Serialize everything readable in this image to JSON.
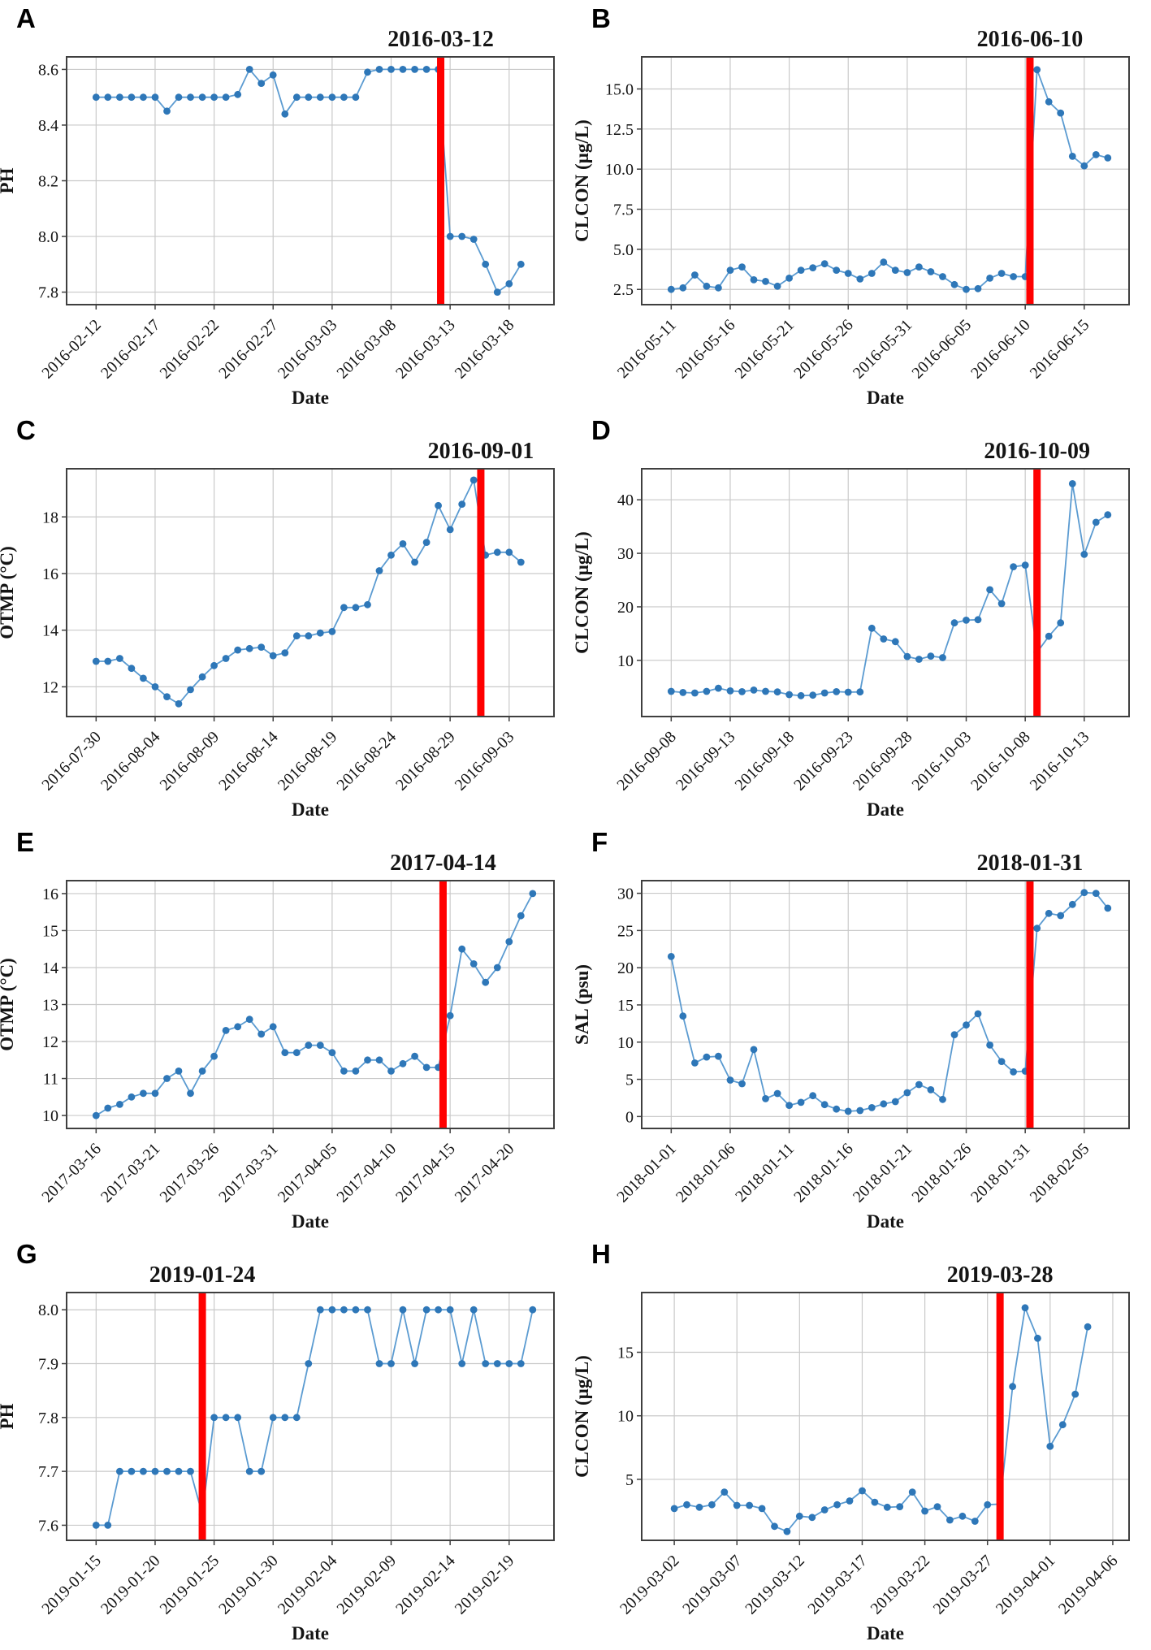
{
  "colors": {
    "line": "#5b9bd1",
    "marker": "#2e77b8",
    "event_line": "#ff0000",
    "annotation_text": "#f50400",
    "grid": "#c9c9c9",
    "frame": "#3f3f3f",
    "plot_background": "#ffffff"
  },
  "chart_data": [
    {
      "type": "line",
      "panel_label": "A",
      "ylabel": "PH",
      "xlabel": "Date",
      "annotation": "2016-03-12",
      "event_x": 29.2,
      "x_unit": "days from first tick date",
      "x_tick_positions": [
        0,
        5,
        10,
        15,
        20,
        25,
        30,
        35
      ],
      "x_tick_labels": [
        "2016-02-12",
        "2016-02-17",
        "2016-02-22",
        "2016-02-27",
        "2016-03-03",
        "2016-03-08",
        "2016-03-13",
        "2016-03-18"
      ],
      "y_tick_values": [
        7.8,
        8.0,
        8.2,
        8.4,
        8.6
      ],
      "y_tick_labels": [
        "7.8",
        "8.0",
        "8.2",
        "8.4",
        "8.6"
      ],
      "ylim": [
        7.755,
        8.645
      ],
      "xlim": [
        -2.5,
        38.8
      ],
      "values": [
        8.5,
        8.5,
        8.5,
        8.5,
        8.5,
        8.5,
        8.45,
        8.5,
        8.5,
        8.5,
        8.5,
        8.5,
        8.51,
        8.6,
        8.55,
        8.58,
        8.44,
        8.5,
        8.5,
        8.5,
        8.5,
        8.5,
        8.5,
        8.59,
        8.6,
        8.6,
        8.6,
        8.6,
        8.6,
        8.6,
        8.0,
        8.0,
        7.99,
        7.9,
        7.8,
        7.83,
        7.9
      ]
    },
    {
      "type": "line",
      "panel_label": "B",
      "ylabel": "CLCON (µg/L)",
      "xlabel": "Date",
      "annotation": "2016-06-10",
      "event_x": 30.4,
      "x_unit": "days from first tick date",
      "x_tick_positions": [
        0,
        5,
        10,
        15,
        20,
        25,
        30,
        35
      ],
      "x_tick_labels": [
        "2016-05-11",
        "2016-05-16",
        "2016-05-21",
        "2016-05-26",
        "2016-05-31",
        "2016-06-05",
        "2016-06-10",
        "2016-06-15"
      ],
      "y_tick_values": [
        2.5,
        5.0,
        7.5,
        10.0,
        12.5,
        15.0
      ],
      "y_tick_labels": [
        "2.5",
        "5.0",
        "7.5",
        "10.0",
        "12.5",
        "15.0"
      ],
      "ylim": [
        1.55,
        17.0
      ],
      "xlim": [
        -2.5,
        38.8
      ],
      "values": [
        2.5,
        2.6,
        3.4,
        2.7,
        2.6,
        3.7,
        3.9,
        3.1,
        3.0,
        2.7,
        3.2,
        3.7,
        3.85,
        4.1,
        3.7,
        3.5,
        3.15,
        3.5,
        4.2,
        3.7,
        3.55,
        3.9,
        3.6,
        3.3,
        2.8,
        2.5,
        2.55,
        3.2,
        3.5,
        3.3,
        3.3,
        16.2,
        14.2,
        13.5,
        10.8,
        10.2,
        10.9,
        10.7
      ]
    },
    {
      "type": "line",
      "panel_label": "C",
      "ylabel": "OTMP (°C)",
      "xlabel": "Date",
      "annotation": "2016-09-01",
      "event_x": 32.6,
      "x_unit": "days from first tick date",
      "x_tick_positions": [
        0,
        5,
        10,
        15,
        20,
        25,
        30,
        35
      ],
      "x_tick_labels": [
        "2016-07-30",
        "2016-08-04",
        "2016-08-09",
        "2016-08-14",
        "2016-08-19",
        "2016-08-24",
        "2016-08-29",
        "2016-09-03"
      ],
      "y_tick_values": [
        12,
        14,
        16,
        18
      ],
      "y_tick_labels": [
        "12",
        "14",
        "16",
        "18"
      ],
      "ylim": [
        10.95,
        19.7
      ],
      "xlim": [
        -2.5,
        38.8
      ],
      "values": [
        12.9,
        12.9,
        13.0,
        12.65,
        12.3,
        12.0,
        11.65,
        11.4,
        11.9,
        12.35,
        12.75,
        13.0,
        13.3,
        13.35,
        13.4,
        13.1,
        13.2,
        13.8,
        13.8,
        13.9,
        13.95,
        14.8,
        14.8,
        14.9,
        16.1,
        16.65,
        17.05,
        16.4,
        17.1,
        18.4,
        17.55,
        18.45,
        19.3,
        16.65,
        16.75,
        16.75,
        16.4
      ]
    },
    {
      "type": "line",
      "panel_label": "D",
      "ylabel": "CLCON (µg/L)",
      "xlabel": "Date",
      "annotation": "2016-10-09",
      "event_x": 31.0,
      "x_unit": "days from first tick date",
      "x_tick_positions": [
        0,
        5,
        10,
        15,
        20,
        25,
        30,
        35
      ],
      "x_tick_labels": [
        "2016-09-08",
        "2016-09-13",
        "2016-09-18",
        "2016-09-23",
        "2016-09-28",
        "2016-10-03",
        "2016-10-08",
        "2016-10-13"
      ],
      "y_tick_values": [
        10,
        20,
        30,
        40
      ],
      "y_tick_labels": [
        "10",
        "20",
        "30",
        "40"
      ],
      "ylim": [
        -0.5,
        45.8
      ],
      "xlim": [
        -2.5,
        38.8
      ],
      "values": [
        4.2,
        4.0,
        3.9,
        4.2,
        4.8,
        4.3,
        4.15,
        4.45,
        4.2,
        4.1,
        3.6,
        3.4,
        3.5,
        3.9,
        4.15,
        4.05,
        4.1,
        16.0,
        14.0,
        13.5,
        10.7,
        10.2,
        10.8,
        10.5,
        17.0,
        17.5,
        17.6,
        23.2,
        20.6,
        27.5,
        27.8,
        11.5,
        14.5,
        17.0,
        43.0,
        29.8,
        35.8,
        37.2
      ]
    },
    {
      "type": "line",
      "panel_label": "E",
      "ylabel": "OTMP (°C)",
      "xlabel": "Date",
      "annotation": "2017-04-14",
      "event_x": 29.4,
      "x_unit": "days from first tick date",
      "x_tick_positions": [
        0,
        5,
        10,
        15,
        20,
        25,
        30,
        35
      ],
      "x_tick_labels": [
        "2017-03-16",
        "2017-03-21",
        "2017-03-26",
        "2017-03-31",
        "2017-04-05",
        "2017-04-10",
        "2017-04-15",
        "2017-04-20"
      ],
      "y_tick_values": [
        10,
        11,
        12,
        13,
        14,
        15,
        16
      ],
      "y_tick_labels": [
        "10",
        "11",
        "12",
        "13",
        "14",
        "15",
        "16"
      ],
      "ylim": [
        9.65,
        16.35
      ],
      "xlim": [
        -2.5,
        38.8
      ],
      "values": [
        10.0,
        10.2,
        10.3,
        10.5,
        10.6,
        10.6,
        11.0,
        11.2,
        10.6,
        11.2,
        11.6,
        12.3,
        12.4,
        12.6,
        12.2,
        12.4,
        11.7,
        11.7,
        11.9,
        11.9,
        11.7,
        11.2,
        11.2,
        11.5,
        11.5,
        11.2,
        11.4,
        11.6,
        11.3,
        11.3,
        12.7,
        14.5,
        14.1,
        13.6,
        14.0,
        14.7,
        15.4,
        16.0
      ]
    },
    {
      "type": "line",
      "panel_label": "F",
      "ylabel": "SAL (psu)",
      "xlabel": "Date",
      "annotation": "2018-01-31",
      "event_x": 30.4,
      "x_unit": "days from first tick date",
      "x_tick_positions": [
        0,
        5,
        10,
        15,
        20,
        25,
        30,
        35
      ],
      "x_tick_labels": [
        "2018-01-01",
        "2018-01-06",
        "2018-01-11",
        "2018-01-16",
        "2018-01-21",
        "2018-01-26",
        "2018-01-31",
        "2018-02-05"
      ],
      "y_tick_values": [
        0,
        5,
        10,
        15,
        20,
        25,
        30
      ],
      "y_tick_labels": [
        "0",
        "5",
        "10",
        "15",
        "20",
        "25",
        "30"
      ],
      "ylim": [
        -1.6,
        31.7
      ],
      "xlim": [
        -2.5,
        38.8
      ],
      "values": [
        21.5,
        13.5,
        7.2,
        8.0,
        8.1,
        4.9,
        4.4,
        9.0,
        2.4,
        3.1,
        1.5,
        1.9,
        2.8,
        1.6,
        1.0,
        0.7,
        0.8,
        1.2,
        1.7,
        2.0,
        3.2,
        4.3,
        3.6,
        2.3,
        11.0,
        12.3,
        13.8,
        9.6,
        7.4,
        6.0,
        6.1,
        25.3,
        27.3,
        27.0,
        28.5,
        30.1,
        30.0,
        28.0
      ]
    },
    {
      "type": "line",
      "panel_label": "G",
      "ylabel": "PH",
      "xlabel": "Date",
      "annotation": "2019-01-24",
      "event_x": 9.0,
      "x_unit": "days from first tick date",
      "x_tick_positions": [
        0,
        5,
        10,
        15,
        20,
        25,
        30,
        35
      ],
      "x_tick_labels": [
        "2019-01-15",
        "2019-01-20",
        "2019-01-25",
        "2019-01-30",
        "2019-02-04",
        "2019-02-09",
        "2019-02-14",
        "2019-02-19"
      ],
      "y_tick_values": [
        7.6,
        7.7,
        7.8,
        7.9,
        8.0
      ],
      "y_tick_labels": [
        "7.6",
        "7.7",
        "7.8",
        "7.9",
        "8.0"
      ],
      "ylim": [
        7.572,
        8.032
      ],
      "xlim": [
        -2.5,
        38.8
      ],
      "values": [
        7.6,
        7.6,
        7.7,
        7.7,
        7.7,
        7.7,
        7.7,
        7.7,
        7.7,
        7.62,
        7.8,
        7.8,
        7.8,
        7.7,
        7.7,
        7.8,
        7.8,
        7.8,
        7.9,
        8.0,
        8.0,
        8.0,
        8.0,
        8.0,
        7.9,
        7.9,
        8.0,
        7.9,
        8.0,
        8.0,
        8.0,
        7.9,
        8.0,
        7.9,
        7.9,
        7.9,
        7.9,
        8.0
      ]
    },
    {
      "type": "line",
      "panel_label": "H",
      "ylabel": "CLCON (µg/L)",
      "xlabel": "Date",
      "annotation": "2019-03-28",
      "event_x": 26.0,
      "x_unit": "days from first tick date",
      "x_tick_positions": [
        0,
        5,
        10,
        15,
        20,
        25,
        30,
        35
      ],
      "x_tick_labels": [
        "2019-03-02",
        "2019-03-07",
        "2019-03-12",
        "2019-03-17",
        "2019-03-22",
        "2019-03-27",
        "2019-04-01",
        "2019-04-06"
      ],
      "y_tick_values": [
        5,
        10,
        15
      ],
      "y_tick_labels": [
        "5",
        "10",
        "15"
      ],
      "ylim": [
        0.2,
        19.7
      ],
      "xlim": [
        -2.6,
        36.3
      ],
      "values": [
        2.7,
        3.0,
        2.8,
        3.0,
        4.0,
        2.95,
        2.95,
        2.7,
        1.3,
        0.9,
        2.1,
        2.0,
        2.6,
        3.0,
        3.3,
        4.1,
        3.2,
        2.8,
        2.85,
        4.0,
        2.5,
        2.85,
        1.8,
        2.1,
        1.7,
        3.0,
        3.05,
        12.3,
        18.5,
        16.1,
        7.6,
        9.3,
        11.7,
        17.0
      ]
    }
  ]
}
